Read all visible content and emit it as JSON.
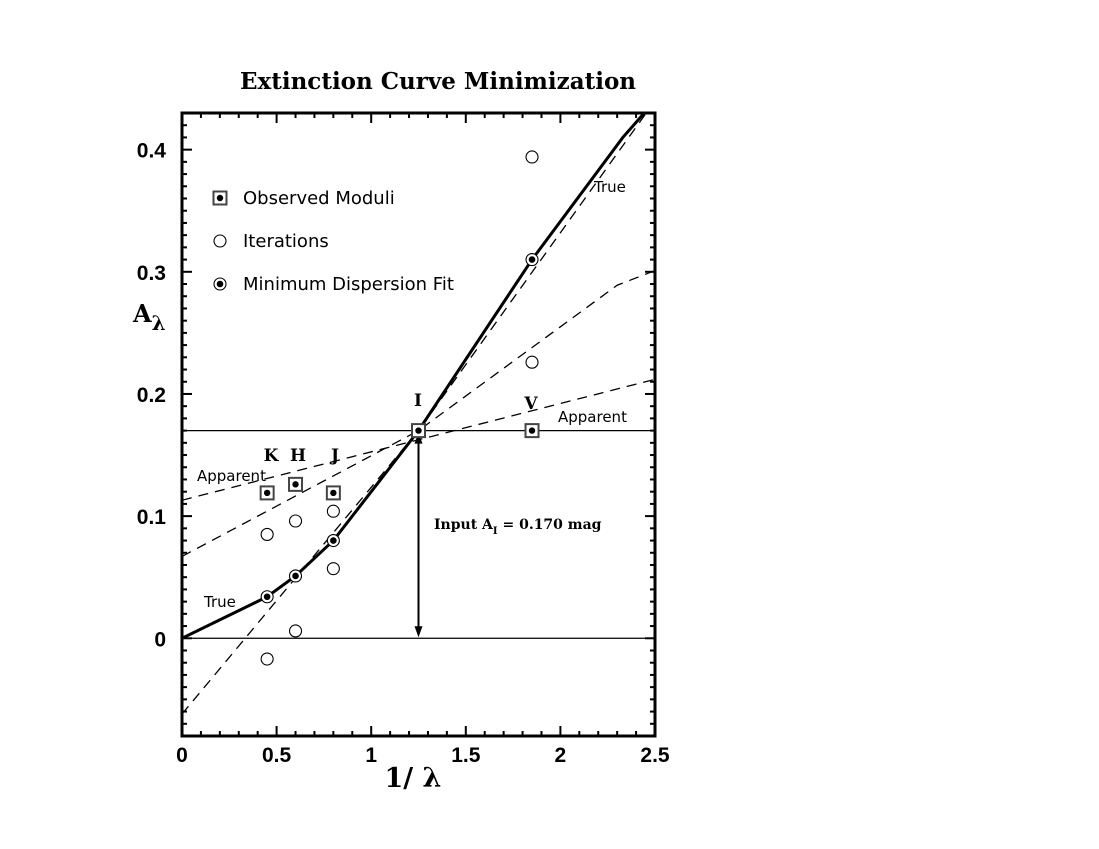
{
  "chart_data": {
    "type": "scatter",
    "title": "Extinction Curve Minimization",
    "xlabel": "1/ λ",
    "ylabel": "Aλ",
    "xlim": [
      0,
      2.5
    ],
    "ylim": [
      -0.08,
      0.43
    ],
    "x_ticks": [
      0,
      0.5,
      1,
      1.5,
      2,
      2.5
    ],
    "x_tick_labels": [
      "0",
      "0.5",
      "1",
      "1.5",
      "2",
      "2.5"
    ],
    "y_ticks": [
      0,
      0.1,
      0.2,
      0.3,
      0.4
    ],
    "y_tick_labels": [
      "0",
      "0.1",
      "0.2",
      "0.3",
      "0.4"
    ],
    "grid": false,
    "legend_position": "top-left",
    "legend": [
      {
        "name": "Observed Moduli",
        "marker": "square-dot"
      },
      {
        "name": "Iterations",
        "marker": "open-circle"
      },
      {
        "name": "Minimum Dispersion Fit",
        "marker": "filled-circle"
      }
    ],
    "true_curve": {
      "label": "True",
      "points": [
        [
          0,
          0
        ],
        [
          0.45,
          0.034
        ],
        [
          0.6,
          0.051
        ],
        [
          0.8,
          0.08
        ],
        [
          1.25,
          0.17
        ],
        [
          1.85,
          0.31
        ],
        [
          2.33,
          0.41
        ],
        [
          2.5,
          0.44
        ]
      ]
    },
    "dashed_lines": [
      {
        "label": "Apparent",
        "points": [
          [
            0,
            0.113
          ],
          [
            2.5,
            0.212
          ]
        ]
      },
      {
        "label": "",
        "points": [
          [
            0,
            0.067
          ],
          [
            1.25,
            0.17
          ],
          [
            2.3,
            0.289
          ],
          [
            2.5,
            0.301
          ]
        ]
      },
      {
        "label": "",
        "points": [
          [
            0,
            -0.062
          ],
          [
            1.25,
            0.17
          ],
          [
            2.5,
            0.44
          ]
        ]
      }
    ],
    "horizontal_lines": [
      0.17,
      0
    ],
    "observed_moduli": [
      {
        "band": "K",
        "x": 0.45,
        "y": 0.119
      },
      {
        "band": "H",
        "x": 0.6,
        "y": 0.126
      },
      {
        "band": "J",
        "x": 0.8,
        "y": 0.119
      },
      {
        "band": "I",
        "x": 1.25,
        "y": 0.17
      },
      {
        "band": "V",
        "x": 1.85,
        "y": 0.17
      }
    ],
    "iterations": [
      {
        "x": 0.45,
        "y": 0.085
      },
      {
        "x": 0.6,
        "y": 0.096
      },
      {
        "x": 0.8,
        "y": 0.104
      },
      {
        "x": 1.85,
        "y": 0.226
      },
      {
        "x": 0.45,
        "y": -0.017
      },
      {
        "x": 0.6,
        "y": 0.006
      },
      {
        "x": 0.8,
        "y": 0.057
      },
      {
        "x": 1.85,
        "y": 0.394
      },
      {
        "x": 1.25,
        "y": 0.17
      }
    ],
    "minimum_dispersion_fit": [
      {
        "x": 0.45,
        "y": 0.034
      },
      {
        "x": 0.6,
        "y": 0.051
      },
      {
        "x": 0.8,
        "y": 0.08
      },
      {
        "x": 1.85,
        "y": 0.31
      }
    ],
    "annotation": {
      "text_before": "Input A",
      "subscript": "I",
      "text_after": "= 0.170 mag",
      "value": 0.17
    },
    "apparent_labels": [
      "Apparent",
      "Apparent"
    ],
    "true_labels": [
      "True",
      "True"
    ]
  }
}
